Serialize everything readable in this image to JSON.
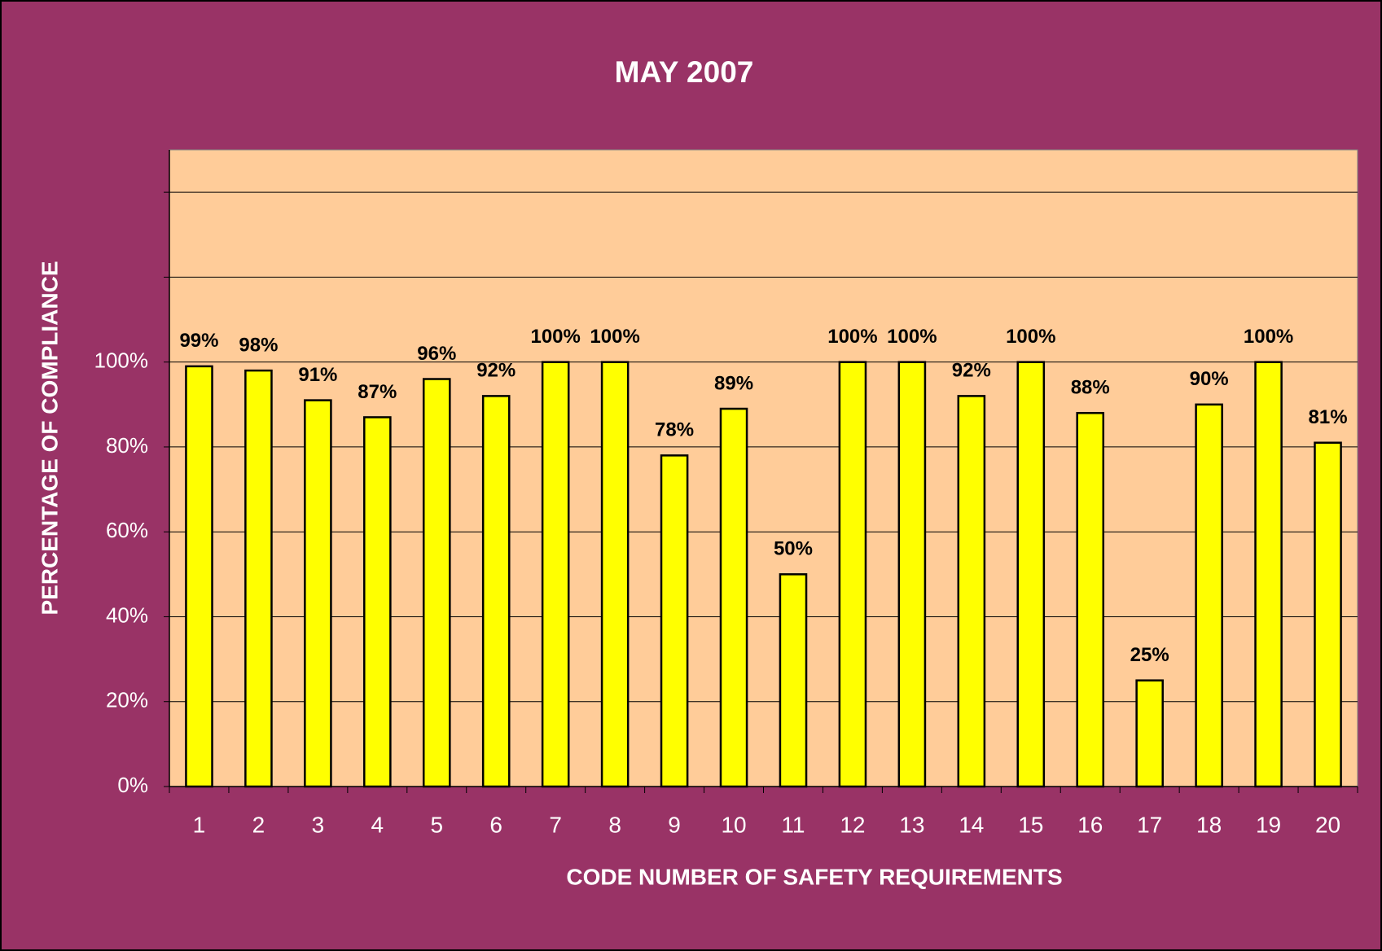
{
  "chart_data": {
    "type": "bar",
    "title": "MAY  2007",
    "x_label": "CODE NUMBER OF SAFETY REQUIREMENTS",
    "y_label": "PERCENTAGE OF COMPLIANCE",
    "categories": [
      "1",
      "2",
      "3",
      "4",
      "5",
      "6",
      "7",
      "8",
      "9",
      "10",
      "11",
      "12",
      "13",
      "14",
      "15",
      "16",
      "17",
      "18",
      "19",
      "20"
    ],
    "values": [
      99,
      98,
      91,
      87,
      96,
      92,
      100,
      100,
      78,
      89,
      50,
      100,
      100,
      92,
      100,
      88,
      25,
      90,
      100,
      81
    ],
    "value_labels": [
      "99%",
      "98%",
      "91%",
      "87%",
      "96%",
      "92%",
      "100%",
      "100%",
      "78%",
      "89%",
      "50%",
      "100%",
      "100%",
      "92%",
      "100%",
      "88%",
      "25%",
      "90%",
      "100%",
      "81%"
    ],
    "color": "#ffff00",
    "ylim": [
      0,
      150
    ],
    "yticks": [
      {
        "value": 0,
        "label": "0%"
      },
      {
        "value": 20,
        "label": "20%"
      },
      {
        "value": 40,
        "label": "40%"
      },
      {
        "value": 60,
        "label": "60%"
      },
      {
        "value": 80,
        "label": "80%"
      },
      {
        "value": 100,
        "label": "100%"
      },
      {
        "value": 120,
        "label": null
      },
      {
        "value": 140,
        "label": null
      }
    ],
    "grid": true
  }
}
